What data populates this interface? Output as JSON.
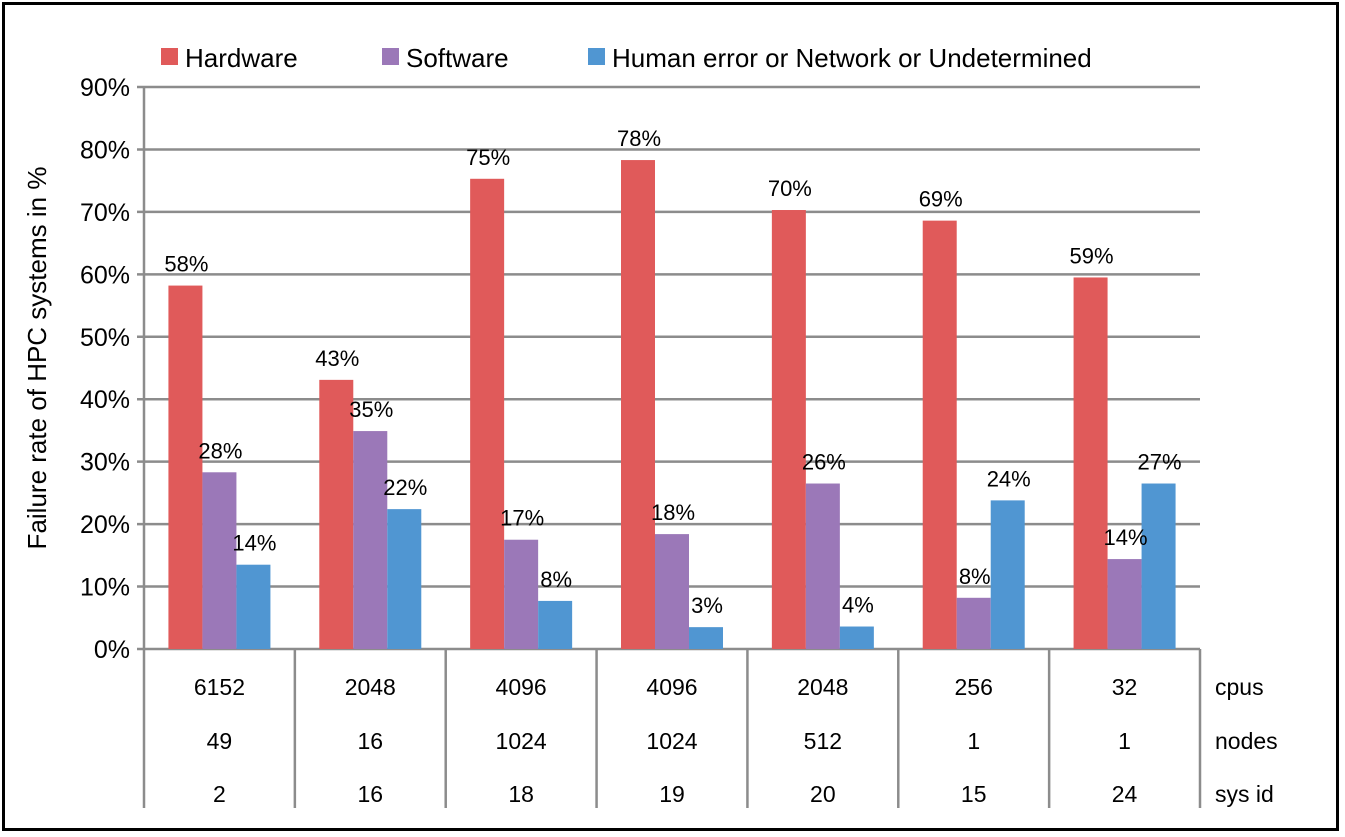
{
  "chart_data": {
    "type": "bar",
    "ylabel": "Failure rate of HPC systems in %",
    "ylim": [
      0,
      90
    ],
    "yticks": [
      "0%",
      "10%",
      "20%",
      "30%",
      "40%",
      "50%",
      "60%",
      "70%",
      "80%",
      "90%"
    ],
    "grid": true,
    "legend_position": "top",
    "categories": [
      {
        "cpus": "6152",
        "nodes": "49",
        "sys_id": "2"
      },
      {
        "cpus": "2048",
        "nodes": "16",
        "sys_id": "16"
      },
      {
        "cpus": "4096",
        "nodes": "1024",
        "sys_id": "18"
      },
      {
        "cpus": "4096",
        "nodes": "1024",
        "sys_id": "19"
      },
      {
        "cpus": "2048",
        "nodes": "512",
        "sys_id": "20"
      },
      {
        "cpus": "256",
        "nodes": "1",
        "sys_id": "15"
      },
      {
        "cpus": "32",
        "nodes": "1",
        "sys_id": "24"
      }
    ],
    "row_labels": {
      "cpus": "cpus",
      "nodes": "nodes",
      "sys_id": "sys id"
    },
    "series": [
      {
        "name": "Hardware",
        "color": "#E05A5A",
        "values": [
          58.2,
          43.1,
          75.3,
          78.3,
          70.3,
          68.6,
          59.5
        ],
        "labels": [
          "58%",
          "43%",
          "75%",
          "78%",
          "70%",
          "69%",
          "59%"
        ]
      },
      {
        "name": "Software",
        "color": "#9B78B8",
        "values": [
          28.3,
          34.9,
          17.5,
          18.4,
          26.5,
          8.2,
          14.4
        ],
        "labels": [
          "28%",
          "35%",
          "17%",
          "18%",
          "26%",
          "8%",
          "14%"
        ]
      },
      {
        "name": "Human error  or Network or Undetermined",
        "color": "#5096D2",
        "values": [
          13.5,
          22.4,
          7.7,
          3.5,
          3.6,
          23.8,
          26.5
        ],
        "labels": [
          "14%",
          "22%",
          "8%",
          "3%",
          "4%",
          "24%",
          "27%"
        ]
      }
    ]
  }
}
